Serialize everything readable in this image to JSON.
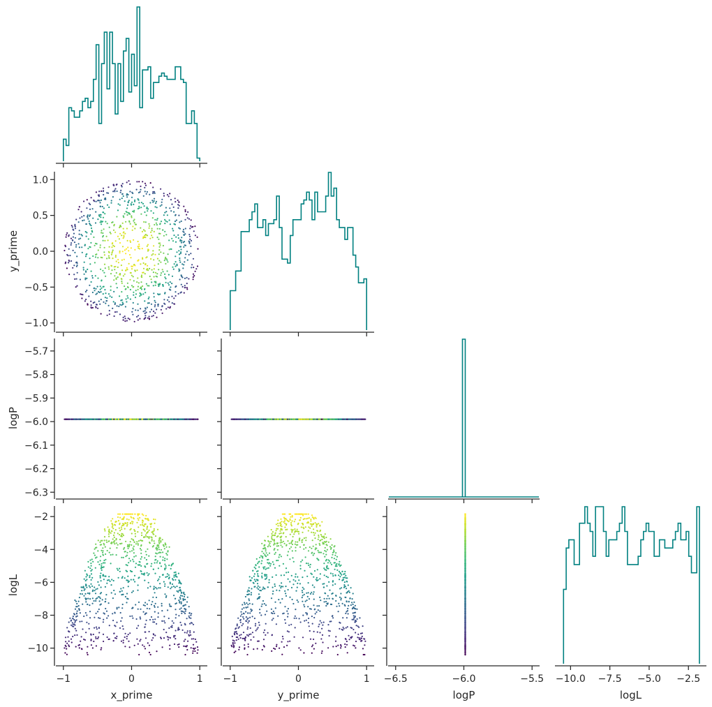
{
  "chart_data": {
    "type": "corner",
    "variables": [
      "x_prime",
      "y_prime",
      "logP",
      "logL"
    ],
    "xlabels": [
      "x_prime",
      "y_prime",
      "logP",
      "logL"
    ],
    "ylabels": [
      "",
      "y_prime",
      "logP",
      "logL"
    ],
    "ranges": {
      "x_prime": [
        -1.1,
        1.1
      ],
      "y_prime": [
        -1.1,
        1.1
      ],
      "logP": [
        -6.32,
        -5.65
      ],
      "logP_x": [
        -6.55,
        -5.45
      ],
      "logL": [
        -10.95,
        -1.4
      ],
      "logL_x": [
        -10.95,
        -1.4
      ]
    },
    "ticks": {
      "x_prime": [
        {
          "value": -1,
          "label": "−1"
        },
        {
          "value": 0,
          "label": "0"
        },
        {
          "value": 1,
          "label": "1"
        }
      ],
      "y_prime": [
        {
          "value": -1,
          "label": "−1"
        },
        {
          "value": 0,
          "label": "0"
        },
        {
          "value": 1,
          "label": "1"
        }
      ],
      "y_prime_y": [
        {
          "value": -1.0,
          "label": "−1.0"
        },
        {
          "value": -0.5,
          "label": "−0.5"
        },
        {
          "value": 0.0,
          "label": "0.0"
        },
        {
          "value": 0.5,
          "label": "0.5"
        },
        {
          "value": 1.0,
          "label": "1.0"
        }
      ],
      "logP_y": [
        {
          "value": -6.3,
          "label": "−6.3"
        },
        {
          "value": -6.2,
          "label": "−6.2"
        },
        {
          "value": -6.1,
          "label": "−6.1"
        },
        {
          "value": -6.0,
          "label": "−6.0"
        },
        {
          "value": -5.9,
          "label": "−5.9"
        },
        {
          "value": -5.8,
          "label": "−5.8"
        },
        {
          "value": -5.7,
          "label": "−5.7"
        }
      ],
      "logP_x": [
        {
          "value": -6.5,
          "label": "−6.5"
        },
        {
          "value": -6.0,
          "label": "−6.0"
        },
        {
          "value": -5.5,
          "label": "−5.5"
        }
      ],
      "logL_y": [
        {
          "value": -10,
          "label": "−10"
        },
        {
          "value": -8,
          "label": "−8"
        },
        {
          "value": -6,
          "label": "−6"
        },
        {
          "value": -4,
          "label": "−4"
        },
        {
          "value": -2,
          "label": "−2"
        }
      ],
      "logL_x": [
        {
          "value": -10.0,
          "label": "−10.0"
        },
        {
          "value": -7.5,
          "label": "−7.5"
        },
        {
          "value": -5.0,
          "label": "−5.0"
        },
        {
          "value": -2.5,
          "label": "−2.5"
        }
      ]
    },
    "histograms": {
      "x_prime": {
        "edges_range": [
          -1,
          1
        ],
        "counts": [
          7,
          5,
          17,
          16,
          14,
          14,
          16,
          19,
          20,
          17,
          19,
          26,
          37,
          12,
          31,
          41,
          23,
          41,
          31,
          15,
          31,
          19,
          35,
          39,
          22,
          34,
          24,
          49,
          17,
          29,
          29,
          30,
          20,
          25,
          25,
          27,
          28,
          27,
          26,
          26,
          26,
          30,
          30,
          26,
          25,
          12,
          12,
          16,
          12,
          1
        ]
      },
      "y_prime": {
        "edges_range": [
          -1,
          1
        ],
        "counts": [
          10,
          10,
          15,
          15,
          25,
          25,
          25,
          28,
          30,
          32,
          26,
          26,
          28,
          24,
          27,
          27,
          28,
          34,
          26,
          18,
          18,
          17,
          24,
          28,
          28,
          28,
          32,
          33,
          35,
          33,
          28,
          35,
          30,
          30,
          30,
          34,
          40,
          34,
          36,
          28,
          26,
          26,
          23,
          26,
          26,
          19,
          16,
          12,
          12,
          13
        ]
      },
      "logP": {
        "bins": [
          {
            "x0": -6.01,
            "x1": -5.99,
            "count": 1000
          }
        ],
        "baseline_range": [
          -6.55,
          -5.45
        ]
      },
      "logL": {
        "edges_range": [
          -10.45,
          -1.8
        ],
        "counts": [
          9,
          14,
          15,
          15,
          12,
          12,
          17,
          17,
          19,
          17,
          16,
          13,
          19,
          19,
          19,
          16,
          13,
          15,
          15,
          15,
          16,
          17,
          19,
          16,
          12,
          12,
          12,
          12,
          13,
          15,
          16,
          17,
          16,
          16,
          13,
          13,
          15,
          15,
          14,
          14,
          14,
          15,
          16,
          17,
          15,
          15,
          16,
          13,
          11,
          11,
          19
        ]
      }
    },
    "scatter": {
      "n_points": 1000,
      "model": "x_prime, y_prime uniform in unit disc; logP constant = -5.99; logL = -2 - 8.4 * r^2 with scatter; color = logL",
      "logP_value": -5.99,
      "logL_peak": -1.85,
      "logL_floor": -10.4
    },
    "colormap": "viridis",
    "colors": {
      "hist_line": "#008080",
      "axes": "#262626",
      "viridis": [
        "#440154",
        "#3b528b",
        "#21918c",
        "#5ec962",
        "#fde725"
      ]
    }
  }
}
